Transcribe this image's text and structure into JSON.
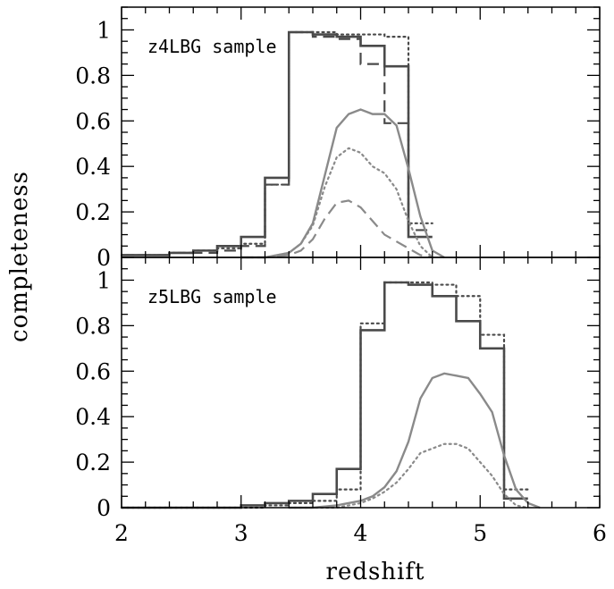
{
  "chart_data": [
    {
      "type": "line",
      "panel": "top",
      "annotation": "z4LBG sample",
      "xlabel": "redshift",
      "ylabel": "completeness",
      "xlim": [
        2,
        6
      ],
      "ylim": [
        0,
        1.1
      ],
      "xticks": [
        2,
        3,
        4,
        5,
        6
      ],
      "yticks": [
        0,
        0.2,
        0.4,
        0.6,
        0.8,
        1
      ],
      "ytick_labels": [
        "0",
        "0.2",
        "0.4",
        "0.6",
        "0.8",
        "1"
      ],
      "series": [
        {
          "style": "solid-dark",
          "kind": "step",
          "bin_edges": [
            2.0,
            2.2,
            2.4,
            2.6,
            2.8,
            3.0,
            3.2,
            3.4,
            3.6,
            3.8,
            4.0,
            4.2,
            4.4,
            4.6
          ],
          "values": [
            0.01,
            0.01,
            0.02,
            0.03,
            0.05,
            0.09,
            0.35,
            0.99,
            0.98,
            0.97,
            0.93,
            0.84,
            0.09
          ]
        },
        {
          "style": "dotted-dark",
          "kind": "step",
          "bin_edges": [
            2.0,
            2.2,
            2.4,
            2.6,
            2.8,
            3.0,
            3.2,
            3.4,
            3.6,
            3.8,
            4.0,
            4.2,
            4.4,
            4.6
          ],
          "values": [
            0.01,
            0.01,
            0.02,
            0.03,
            0.04,
            0.06,
            0.32,
            0.99,
            0.99,
            0.98,
            0.98,
            0.97,
            0.15
          ]
        },
        {
          "style": "dashed-dark",
          "kind": "step",
          "bin_edges": [
            2.0,
            2.2,
            2.4,
            2.6,
            2.8,
            3.0,
            3.2,
            3.4,
            3.6,
            3.8,
            4.0,
            4.2,
            4.4,
            4.6
          ],
          "values": [
            0.01,
            0.01,
            0.02,
            0.02,
            0.03,
            0.05,
            0.32,
            0.99,
            0.97,
            0.96,
            0.85,
            0.59,
            0.12
          ]
        },
        {
          "style": "solid-gray",
          "kind": "curve",
          "x": [
            3.0,
            3.2,
            3.4,
            3.5,
            3.6,
            3.7,
            3.8,
            3.9,
            4.0,
            4.1,
            4.2,
            4.3,
            4.4,
            4.5,
            4.6,
            4.7
          ],
          "y": [
            0.0,
            0.0,
            0.02,
            0.06,
            0.15,
            0.36,
            0.57,
            0.63,
            0.65,
            0.63,
            0.63,
            0.58,
            0.39,
            0.18,
            0.03,
            0.0
          ]
        },
        {
          "style": "dotted-gray",
          "kind": "curve",
          "x": [
            3.0,
            3.2,
            3.4,
            3.5,
            3.6,
            3.7,
            3.8,
            3.9,
            4.0,
            4.1,
            4.2,
            4.3,
            4.4,
            4.5,
            4.6
          ],
          "y": [
            0.0,
            0.0,
            0.02,
            0.06,
            0.14,
            0.31,
            0.44,
            0.48,
            0.46,
            0.4,
            0.37,
            0.3,
            0.16,
            0.05,
            0.0
          ]
        },
        {
          "style": "dashed-gray",
          "kind": "curve",
          "x": [
            3.0,
            3.2,
            3.4,
            3.5,
            3.6,
            3.7,
            3.8,
            3.9,
            4.0,
            4.1,
            4.2,
            4.3,
            4.4,
            4.5,
            4.6
          ],
          "y": [
            0.0,
            0.0,
            0.01,
            0.03,
            0.08,
            0.17,
            0.24,
            0.25,
            0.22,
            0.16,
            0.1,
            0.07,
            0.04,
            0.01,
            0.0
          ]
        }
      ]
    },
    {
      "type": "line",
      "panel": "bottom",
      "annotation": "z5LBG sample",
      "xlabel": "redshift",
      "ylabel": "completeness",
      "xlim": [
        2,
        6
      ],
      "ylim": [
        0,
        1.1
      ],
      "xticks": [
        2,
        3,
        4,
        5,
        6
      ],
      "yticks": [
        0,
        0.2,
        0.4,
        0.6,
        0.8,
        1
      ],
      "ytick_labels": [
        "0",
        "0.2",
        "0.4",
        "0.6",
        "0.8",
        "1"
      ],
      "series": [
        {
          "style": "solid-dark",
          "kind": "step",
          "bin_edges": [
            2.0,
            2.2,
            2.4,
            2.6,
            2.8,
            3.0,
            3.2,
            3.4,
            3.6,
            3.8,
            4.0,
            4.2,
            4.4,
            4.6,
            4.8,
            5.0,
            5.2,
            5.4
          ],
          "values": [
            0.0,
            0.0,
            0.0,
            0.0,
            0.0,
            0.01,
            0.02,
            0.03,
            0.06,
            0.17,
            0.78,
            0.99,
            0.98,
            0.93,
            0.82,
            0.7,
            0.04
          ]
        },
        {
          "style": "dotted-dark",
          "kind": "step",
          "bin_edges": [
            2.0,
            2.2,
            2.4,
            2.6,
            2.8,
            3.0,
            3.2,
            3.4,
            3.6,
            3.8,
            4.0,
            4.2,
            4.4,
            4.6,
            4.8,
            5.0,
            5.2,
            5.4
          ],
          "values": [
            0.0,
            0.0,
            0.0,
            0.0,
            0.0,
            0.0,
            0.01,
            0.02,
            0.03,
            0.08,
            0.81,
            0.99,
            0.99,
            0.98,
            0.93,
            0.76,
            0.08
          ]
        },
        {
          "style": "solid-gray",
          "kind": "curve",
          "x": [
            3.4,
            3.6,
            3.8,
            4.0,
            4.1,
            4.2,
            4.3,
            4.4,
            4.5,
            4.6,
            4.7,
            4.8,
            4.9,
            5.0,
            5.1,
            5.2,
            5.3,
            5.4,
            5.5
          ],
          "y": [
            0.0,
            0.0,
            0.01,
            0.03,
            0.05,
            0.09,
            0.16,
            0.29,
            0.48,
            0.57,
            0.59,
            0.58,
            0.57,
            0.5,
            0.42,
            0.23,
            0.08,
            0.02,
            0.0
          ]
        },
        {
          "style": "dotted-gray",
          "kind": "curve",
          "x": [
            3.4,
            3.6,
            3.8,
            4.0,
            4.1,
            4.2,
            4.3,
            4.4,
            4.5,
            4.6,
            4.7,
            4.8,
            4.9,
            5.0,
            5.1,
            5.2,
            5.3,
            5.4
          ],
          "y": [
            0.0,
            0.0,
            0.0,
            0.02,
            0.04,
            0.07,
            0.11,
            0.17,
            0.24,
            0.26,
            0.28,
            0.28,
            0.26,
            0.2,
            0.14,
            0.06,
            0.01,
            0.0
          ]
        }
      ]
    }
  ]
}
